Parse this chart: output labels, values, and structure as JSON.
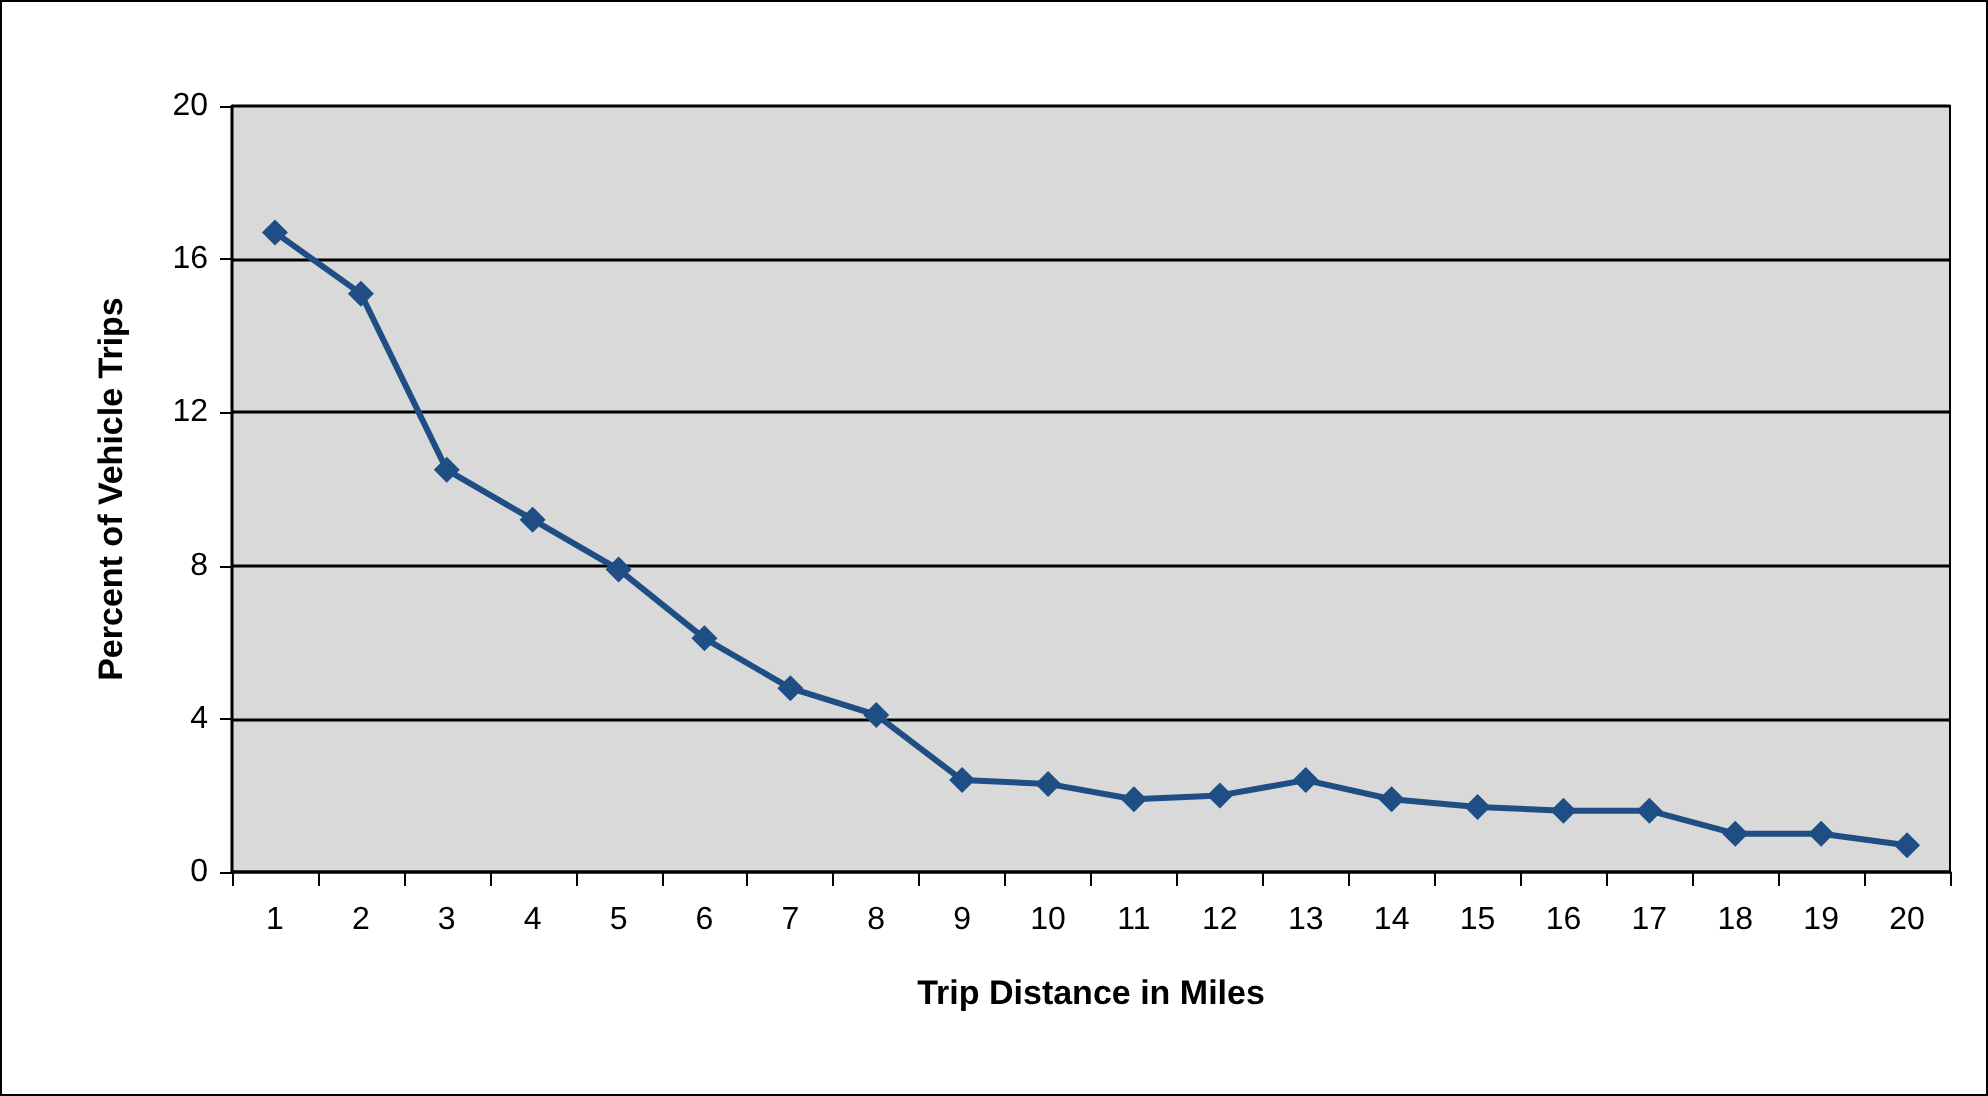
{
  "chart_data": {
    "type": "line",
    "xlabel": "Trip Distance in Miles",
    "ylabel": "Percent of Vehicle Trips",
    "categories": [
      "1",
      "2",
      "3",
      "4",
      "5",
      "6",
      "7",
      "8",
      "9",
      "10",
      "11",
      "12",
      "13",
      "14",
      "15",
      "16",
      "17",
      "18",
      "19",
      "20"
    ],
    "series": [
      {
        "color": "#1f4e85",
        "values": [
          16.7,
          15.1,
          10.5,
          9.2,
          7.9,
          6.1,
          4.8,
          4.1,
          2.4,
          2.3,
          1.9,
          2.0,
          2.4,
          1.9,
          1.7,
          1.6,
          1.6,
          1.0,
          1.0,
          0.7
        ]
      }
    ],
    "ylim": [
      0,
      20
    ],
    "yticks": [
      0,
      4,
      8,
      12,
      16,
      20
    ],
    "grid": "y",
    "marker": "diamond"
  }
}
